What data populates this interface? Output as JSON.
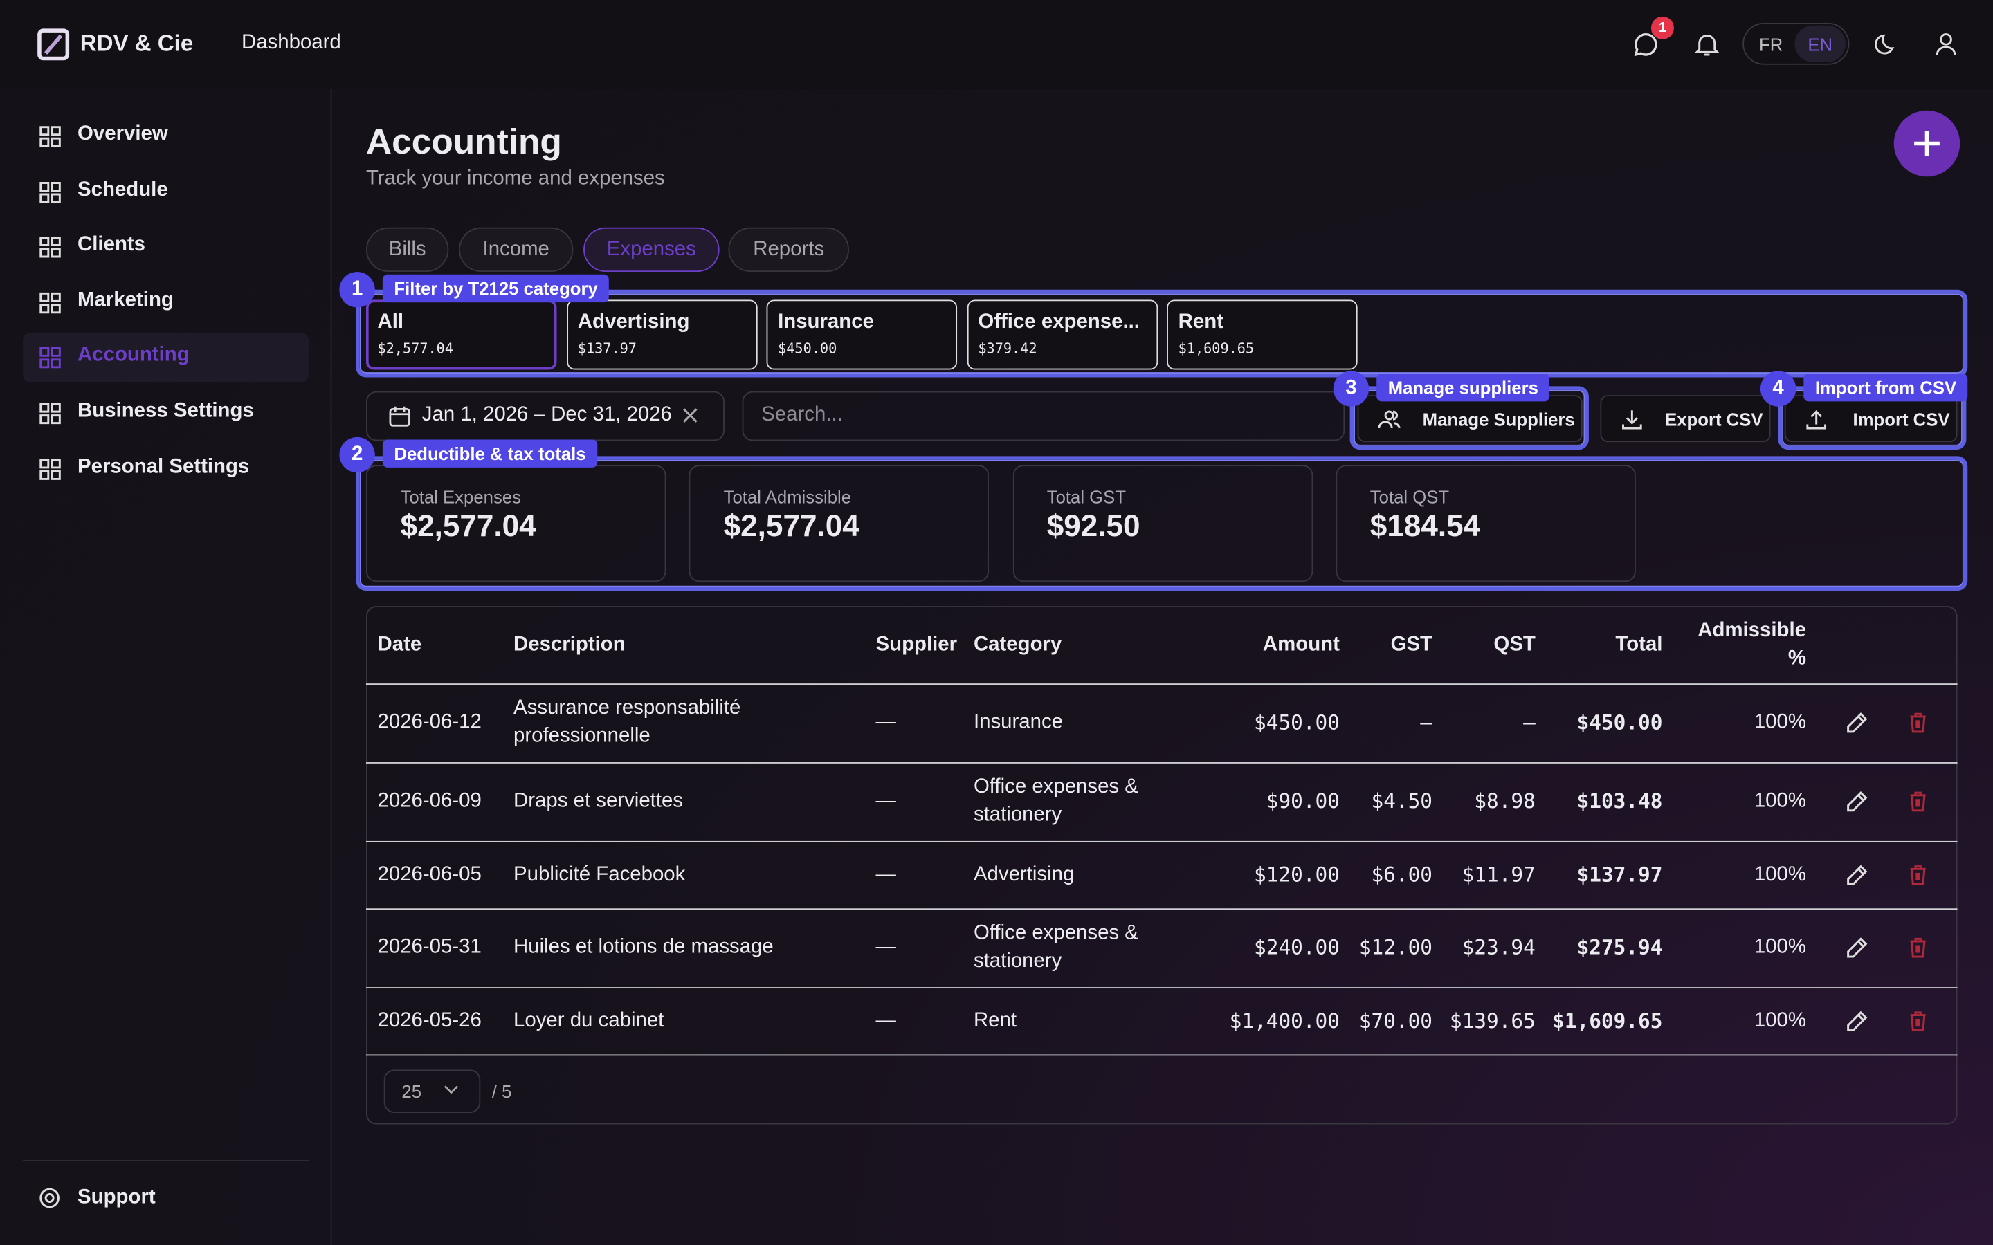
{
  "header": {
    "brand": "RDV & Cie",
    "nav": "Dashboard",
    "badge": "1",
    "languages": [
      "FR",
      "EN"
    ]
  },
  "sidebar": {
    "items": [
      "Overview",
      "Schedule",
      "Clients",
      "Marketing",
      "Accounting",
      "Business Settings",
      "Personal Settings"
    ],
    "support": "Support"
  },
  "page": {
    "title": "Accounting",
    "subtitle": "Track your income and expenses"
  },
  "tabs": [
    "Bills",
    "Income",
    "Expenses",
    "Reports"
  ],
  "callouts": [
    {
      "number": "1",
      "label": "Filter by T2125 category"
    },
    {
      "number": "2",
      "label": "Deductible & tax totals"
    },
    {
      "number": "3",
      "label": "Manage suppliers"
    },
    {
      "number": "4",
      "label": "Import from CSV"
    }
  ],
  "categories": [
    {
      "name": "All",
      "amount": "$2,577.04"
    },
    {
      "name": "Advertising",
      "amount": "$137.97"
    },
    {
      "name": "Insurance",
      "amount": "$450.00"
    },
    {
      "name": "Office expense...",
      "amount": "$379.42"
    },
    {
      "name": "Rent",
      "amount": "$1,609.65"
    }
  ],
  "filters": {
    "date_range": "Jan 1, 2026 – Dec 31, 2026",
    "search_placeholder": "Search..."
  },
  "actions": [
    "Manage Suppliers",
    "Export CSV",
    "Import CSV"
  ],
  "totals": [
    {
      "label": "Total Expenses",
      "value": "$2,577.04"
    },
    {
      "label": "Total Admissible",
      "value": "$2,577.04"
    },
    {
      "label": "Total GST",
      "value": "$92.50"
    },
    {
      "label": "Total QST",
      "value": "$184.54"
    }
  ],
  "table": {
    "columns": [
      "Date",
      "Description",
      "Supplier",
      "Category",
      "Amount",
      "GST",
      "QST",
      "Total",
      "Admissible %"
    ],
    "rows": [
      [
        "2026-06-12",
        "Assurance responsabilité professionnelle",
        "—",
        "Insurance",
        "$450.00",
        "–",
        "–",
        "$450.00",
        "100%"
      ],
      [
        "2026-06-09",
        "Draps et serviettes",
        "—",
        "Office expenses & stationery",
        "$90.00",
        "$4.50",
        "$8.98",
        "$103.48",
        "100%"
      ],
      [
        "2026-06-05",
        "Publicité Facebook",
        "—",
        "Advertising",
        "$120.00",
        "$6.00",
        "$11.97",
        "$137.97",
        "100%"
      ],
      [
        "2026-05-31",
        "Huiles et lotions de massage",
        "—",
        "Office expenses & stationery",
        "$240.00",
        "$12.00",
        "$23.94",
        "$275.94",
        "100%"
      ],
      [
        "2026-05-26",
        "Loyer du cabinet",
        "—",
        "Rent",
        "$1,400.00",
        "$70.00",
        "$139.65",
        "$1,609.65",
        "100%"
      ]
    ]
  },
  "pagination": {
    "page_size": "25",
    "pages": "/ 5"
  }
}
